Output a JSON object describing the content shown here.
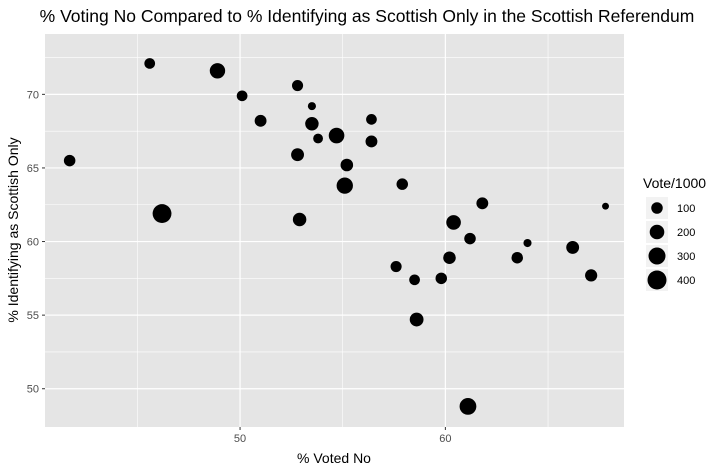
{
  "chart_data": {
    "type": "scatter",
    "title": "% Voting No Compared to % Identifying as Scottish Only in the Scottish Referendum",
    "xlabel": "% Voted No",
    "ylabel": "% Identifying as Scottish Only",
    "xlim": [
      40.5,
      68.7
    ],
    "ylim": [
      47.4,
      74.1
    ],
    "x_ticks": [
      50,
      60
    ],
    "y_ticks": [
      50,
      55,
      60,
      65,
      70
    ],
    "x_tick_labels": [
      "50",
      "60"
    ],
    "y_tick_labels": [
      "50",
      "55",
      "60",
      "65",
      "70"
    ],
    "x_minor_ticks": [
      45,
      55,
      65
    ],
    "y_minor_ticks": [
      52.5,
      57.5,
      62.5,
      67.5,
      72.5
    ],
    "grid": true,
    "panel_background": "#e5e5e5",
    "grid_color": "#ffffff",
    "point_color": "#000000",
    "size_legend": {
      "title": "Vote/1000",
      "position": "right",
      "breaks": [
        100,
        200,
        300,
        400
      ],
      "labels": [
        "100",
        "200",
        "300",
        "400"
      ]
    },
    "points": [
      {
        "x": 41.7,
        "y": 65.5,
        "size": 100
      },
      {
        "x": 45.6,
        "y": 72.1,
        "size": 80
      },
      {
        "x": 46.2,
        "y": 61.9,
        "size": 390
      },
      {
        "x": 48.9,
        "y": 71.6,
        "size": 230
      },
      {
        "x": 50.1,
        "y": 69.9,
        "size": 80
      },
      {
        "x": 51.0,
        "y": 68.2,
        "size": 110
      },
      {
        "x": 52.8,
        "y": 70.6,
        "size": 90
      },
      {
        "x": 52.8,
        "y": 65.9,
        "size": 140
      },
      {
        "x": 52.9,
        "y": 61.5,
        "size": 160
      },
      {
        "x": 53.5,
        "y": 69.2,
        "size": 30
      },
      {
        "x": 53.5,
        "y": 68.0,
        "size": 160
      },
      {
        "x": 53.8,
        "y": 67.0,
        "size": 60
      },
      {
        "x": 54.7,
        "y": 67.2,
        "size": 240
      },
      {
        "x": 55.1,
        "y": 63.8,
        "size": 270
      },
      {
        "x": 55.2,
        "y": 65.2,
        "size": 130
      },
      {
        "x": 56.4,
        "y": 68.3,
        "size": 80
      },
      {
        "x": 56.4,
        "y": 66.8,
        "size": 110
      },
      {
        "x": 57.6,
        "y": 58.3,
        "size": 90
      },
      {
        "x": 57.9,
        "y": 63.9,
        "size": 100
      },
      {
        "x": 58.5,
        "y": 57.4,
        "size": 80
      },
      {
        "x": 58.6,
        "y": 54.7,
        "size": 170
      },
      {
        "x": 59.8,
        "y": 57.5,
        "size": 100
      },
      {
        "x": 60.2,
        "y": 58.9,
        "size": 130
      },
      {
        "x": 60.4,
        "y": 61.3,
        "size": 200
      },
      {
        "x": 61.1,
        "y": 48.8,
        "size": 290
      },
      {
        "x": 61.2,
        "y": 60.2,
        "size": 100
      },
      {
        "x": 61.8,
        "y": 62.6,
        "size": 110
      },
      {
        "x": 63.5,
        "y": 58.9,
        "size": 100
      },
      {
        "x": 64.0,
        "y": 59.9,
        "size": 30
      },
      {
        "x": 66.2,
        "y": 59.6,
        "size": 140
      },
      {
        "x": 67.1,
        "y": 57.7,
        "size": 120
      },
      {
        "x": 67.8,
        "y": 62.4,
        "size": 15
      }
    ]
  }
}
